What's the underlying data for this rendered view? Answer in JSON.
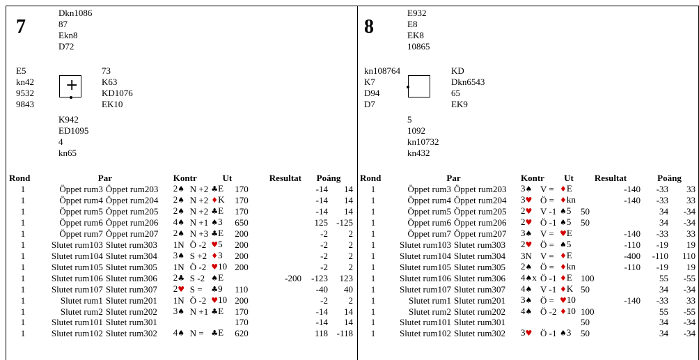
{
  "headers": {
    "rond": "Rond",
    "par": "Par",
    "kontr": "Kontr",
    "ut": "Ut",
    "resultat": "Resultat",
    "poang": "Poäng"
  },
  "suits": {
    "S": "♠",
    "H": "♥",
    "D": "♦",
    "C": "♣"
  },
  "boards": [
    {
      "number": "7",
      "north": [
        "Dkn1086",
        "87",
        "Ekn8",
        "D72"
      ],
      "west": [
        "E5",
        "kn42",
        "9532",
        "9843"
      ],
      "east": [
        "73",
        "K63",
        "KD1076",
        "EK10"
      ],
      "south": [
        "K942",
        "ED1095",
        "4",
        "kn65"
      ],
      "rows": [
        {
          "rond": "1",
          "p1": "Öppet rum3",
          "p2": "Öppet rum203",
          "lvl": "2",
          "suit": "S",
          "dec": "N",
          "res": "+2",
          "ls": "C",
          "lc": "E",
          "rp": "170",
          "rn": "",
          "s1": "-14",
          "s2": "14"
        },
        {
          "rond": "1",
          "p1": "Öppet rum4",
          "p2": "Öppet rum204",
          "lvl": "2",
          "suit": "S",
          "dec": "N",
          "res": "+2",
          "ls": "D",
          "lc": "K",
          "rp": "170",
          "rn": "",
          "s1": "-14",
          "s2": "14"
        },
        {
          "rond": "1",
          "p1": "Öppet rum5",
          "p2": "Öppet rum205",
          "lvl": "2",
          "suit": "S",
          "dec": "N",
          "res": "+2",
          "ls": "C",
          "lc": "E",
          "rp": "170",
          "rn": "",
          "s1": "-14",
          "s2": "14"
        },
        {
          "rond": "1",
          "p1": "Öppet rum6",
          "p2": "Öppet rum206",
          "lvl": "4",
          "suit": "S",
          "dec": "N",
          "res": "+1",
          "ls": "S",
          "lc": "3",
          "rp": "650",
          "rn": "",
          "s1": "125",
          "s2": "-125"
        },
        {
          "rond": "1",
          "p1": "Öppet rum7",
          "p2": "Öppet rum207",
          "lvl": "2",
          "suit": "S",
          "dec": "N",
          "res": "+3",
          "ls": "C",
          "lc": "E",
          "rp": "200",
          "rn": "",
          "s1": "-2",
          "s2": "2"
        },
        {
          "rond": "1",
          "p1": "Slutet rum103",
          "p2": "Slutet rum303",
          "lvl": "1N",
          "suit": "",
          "dec": "Ö",
          "res": "-2",
          "ls": "H",
          "lc": "5",
          "rp": "200",
          "rn": "",
          "s1": "-2",
          "s2": "2"
        },
        {
          "rond": "1",
          "p1": "Slutet rum104",
          "p2": "Slutet rum304",
          "lvl": "3",
          "suit": "S",
          "dec": "S",
          "res": "+2",
          "ls": "D",
          "lc": "3",
          "rp": "200",
          "rn": "",
          "s1": "-2",
          "s2": "2"
        },
        {
          "rond": "1",
          "p1": "Slutet rum105",
          "p2": "Slutet rum305",
          "lvl": "1N",
          "suit": "",
          "dec": "Ö",
          "res": "-2",
          "ls": "H",
          "lc": "10",
          "rp": "200",
          "rn": "",
          "s1": "-2",
          "s2": "2"
        },
        {
          "rond": "1",
          "p1": "Slutet rum106",
          "p2": "Slutet rum306",
          "lvl": "2",
          "suit": "C",
          "dec": "S",
          "res": "-2",
          "ls": "S",
          "lc": "E",
          "rp": "",
          "rn": "-200",
          "s1": "-123",
          "s2": "123"
        },
        {
          "rond": "1",
          "p1": "Slutet rum107",
          "p2": "Slutet rum307",
          "lvl": "2",
          "suit": "H",
          "dec": "S",
          "res": "=",
          "ls": "C",
          "lc": "9",
          "rp": "110",
          "rn": "",
          "s1": "-40",
          "s2": "40"
        },
        {
          "rond": "1",
          "p1": "Slutet rum1",
          "p2": "Slutet rum201",
          "lvl": "1N",
          "suit": "",
          "dec": "Ö",
          "res": "-2",
          "ls": "H",
          "lc": "10",
          "rp": "200",
          "rn": "",
          "s1": "-2",
          "s2": "2"
        },
        {
          "rond": "1",
          "p1": "Slutet rum2",
          "p2": "Slutet rum202",
          "lvl": "3",
          "suit": "S",
          "dec": "N",
          "res": "+1",
          "ls": "C",
          "lc": "E",
          "rp": "170",
          "rn": "",
          "s1": "-14",
          "s2": "14"
        },
        {
          "rond": "1",
          "p1": "Slutet rum101",
          "p2": "Slutet rum301",
          "lvl": "",
          "suit": "",
          "dec": "",
          "res": "",
          "ls": "",
          "lc": "",
          "rp": "170",
          "rn": "",
          "s1": "-14",
          "s2": "14"
        },
        {
          "rond": "1",
          "p1": "Slutet rum102",
          "p2": "Slutet rum302",
          "lvl": "4",
          "suit": "S",
          "dec": "N",
          "res": "=",
          "ls": "C",
          "lc": "E",
          "rp": "620",
          "rn": "",
          "s1": "118",
          "s2": "-118"
        }
      ]
    },
    {
      "number": "8",
      "north": [
        "E932",
        "E8",
        "EK8",
        "10865"
      ],
      "west": [
        "kn108764",
        "K7",
        "D94",
        "D7"
      ],
      "east": [
        "KD",
        "Dkn6543",
        "65",
        "EK9"
      ],
      "south": [
        "5",
        "1092",
        "kn10732",
        "kn432"
      ],
      "rows": [
        {
          "rond": "1",
          "p1": "Öppet rum3",
          "p2": "Öppet rum203",
          "lvl": "3",
          "suit": "S",
          "dec": "V",
          "res": "=",
          "ls": "D",
          "lc": "E",
          "rp": "",
          "rn": "-140",
          "s1": "-33",
          "s2": "33"
        },
        {
          "rond": "1",
          "p1": "Öppet rum4",
          "p2": "Öppet rum204",
          "lvl": "3",
          "suit": "H",
          "dec": "Ö",
          "res": "=",
          "ls": "D",
          "lc": "kn",
          "rp": "",
          "rn": "-140",
          "s1": "-33",
          "s2": "33"
        },
        {
          "rond": "1",
          "p1": "Öppet rum5",
          "p2": "Öppet rum205",
          "lvl": "2",
          "suit": "H",
          "dec": "V",
          "res": "-1",
          "ls": "S",
          "lc": "5",
          "rp": "50",
          "rn": "",
          "s1": "34",
          "s2": "-34"
        },
        {
          "rond": "1",
          "p1": "Öppet rum6",
          "p2": "Öppet rum206",
          "lvl": "2",
          "suit": "H",
          "dec": "Ö",
          "res": "-1",
          "ls": "S",
          "lc": "5",
          "rp": "50",
          "rn": "",
          "s1": "34",
          "s2": "-34"
        },
        {
          "rond": "1",
          "p1": "Öppet rum7",
          "p2": "Öppet rum207",
          "lvl": "3",
          "suit": "S",
          "dec": "V",
          "res": "=",
          "ls": "H",
          "lc": "E",
          "rp": "",
          "rn": "-140",
          "s1": "-33",
          "s2": "33"
        },
        {
          "rond": "1",
          "p1": "Slutet rum103",
          "p2": "Slutet rum303",
          "lvl": "2",
          "suit": "H",
          "dec": "Ö",
          "res": "=",
          "ls": "S",
          "lc": "5",
          "rp": "",
          "rn": "-110",
          "s1": "-19",
          "s2": "19"
        },
        {
          "rond": "1",
          "p1": "Slutet rum104",
          "p2": "Slutet rum304",
          "lvl": "3N",
          "suit": "",
          "dec": "V",
          "res": "=",
          "ls": "D",
          "lc": "E",
          "rp": "",
          "rn": "-400",
          "s1": "-110",
          "s2": "110"
        },
        {
          "rond": "1",
          "p1": "Slutet rum105",
          "p2": "Slutet rum305",
          "lvl": "2",
          "suit": "S",
          "dec": "Ö",
          "res": "=",
          "ls": "D",
          "lc": "kn",
          "rp": "",
          "rn": "-110",
          "s1": "-19",
          "s2": "19"
        },
        {
          "rond": "1",
          "p1": "Slutet rum106",
          "p2": "Slutet rum306",
          "lvl": "4",
          "suit": "S",
          "x": "x",
          "dec": "Ö",
          "res": "-1",
          "ls": "D",
          "lc": "E",
          "rp": "100",
          "rn": "",
          "s1": "55",
          "s2": "-55"
        },
        {
          "rond": "1",
          "p1": "Slutet rum107",
          "p2": "Slutet rum307",
          "lvl": "4",
          "suit": "S",
          "dec": "V",
          "res": "-1",
          "ls": "D",
          "lc": "K",
          "rp": "50",
          "rn": "",
          "s1": "34",
          "s2": "-34"
        },
        {
          "rond": "1",
          "p1": "Slutet rum1",
          "p2": "Slutet rum201",
          "lvl": "3",
          "suit": "S",
          "dec": "Ö",
          "res": "=",
          "ls": "H",
          "lc": "10",
          "rp": "",
          "rn": "-140",
          "s1": "-33",
          "s2": "33"
        },
        {
          "rond": "1",
          "p1": "Slutet rum2",
          "p2": "Slutet rum202",
          "lvl": "4",
          "suit": "S",
          "dec": "Ö",
          "res": "-2",
          "ls": "D",
          "lc": "10",
          "rp": "100",
          "rn": "",
          "s1": "55",
          "s2": "-55"
        },
        {
          "rond": "1",
          "p1": "Slutet rum101",
          "p2": "Slutet rum301",
          "lvl": "",
          "suit": "",
          "dec": "",
          "res": "",
          "ls": "",
          "lc": "",
          "rp": "50",
          "rn": "",
          "s1": "34",
          "s2": "-34"
        },
        {
          "rond": "1",
          "p1": "Slutet rum102",
          "p2": "Slutet rum302",
          "lvl": "3",
          "suit": "H",
          "dec": "Ö",
          "res": "-1",
          "ls": "S",
          "lc": "3",
          "rp": "50",
          "rn": "",
          "s1": "34",
          "s2": "-34"
        }
      ]
    }
  ]
}
